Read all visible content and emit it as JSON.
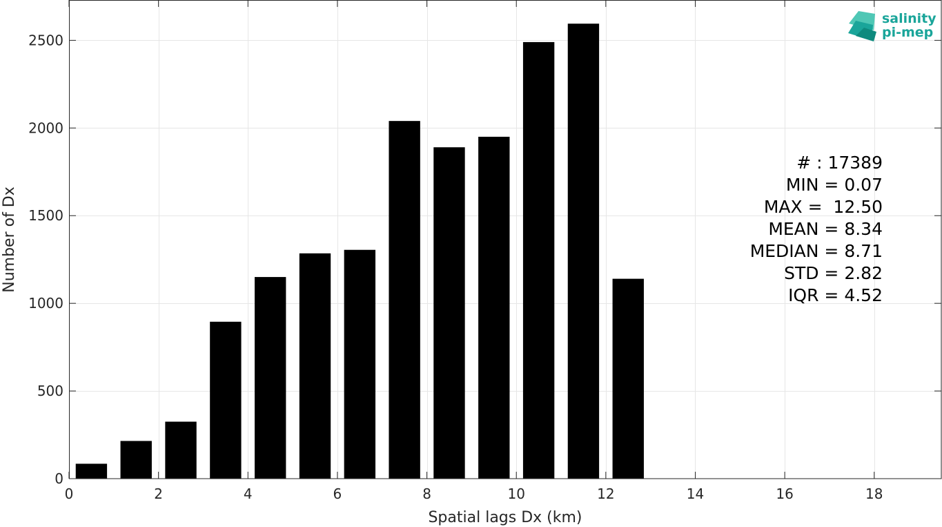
{
  "chart_data": {
    "type": "bar",
    "x": [
      0.5,
      1.5,
      2.5,
      3.5,
      4.5,
      5.5,
      6.5,
      7.5,
      8.5,
      9.5,
      10.5,
      11.5,
      12.5
    ],
    "values": [
      85,
      215,
      325,
      895,
      1150,
      1285,
      1305,
      2040,
      1890,
      1950,
      2490,
      2595,
      1140
    ],
    "xlabel": "Spatial lags Dx (km)",
    "ylabel": "Number of Dx",
    "xlim": [
      0,
      19.5
    ],
    "ylim": [
      0,
      2730
    ],
    "xticks": [
      0,
      2,
      4,
      6,
      8,
      10,
      12,
      14,
      16,
      18
    ],
    "yticks": [
      0,
      500,
      1000,
      1500,
      2000,
      2500
    ],
    "grid": true,
    "bar_color": "#000000"
  },
  "stats": [
    "# : 17389",
    "MIN = 0.07",
    "MAX =  12.50",
    "MEAN = 8.34",
    "MEDIAN = 8.71",
    "STD = 2.82",
    "IQR = 4.52"
  ],
  "logo": {
    "line1": "salinity",
    "line2": "pi-mep",
    "color": "#1aa59a"
  }
}
